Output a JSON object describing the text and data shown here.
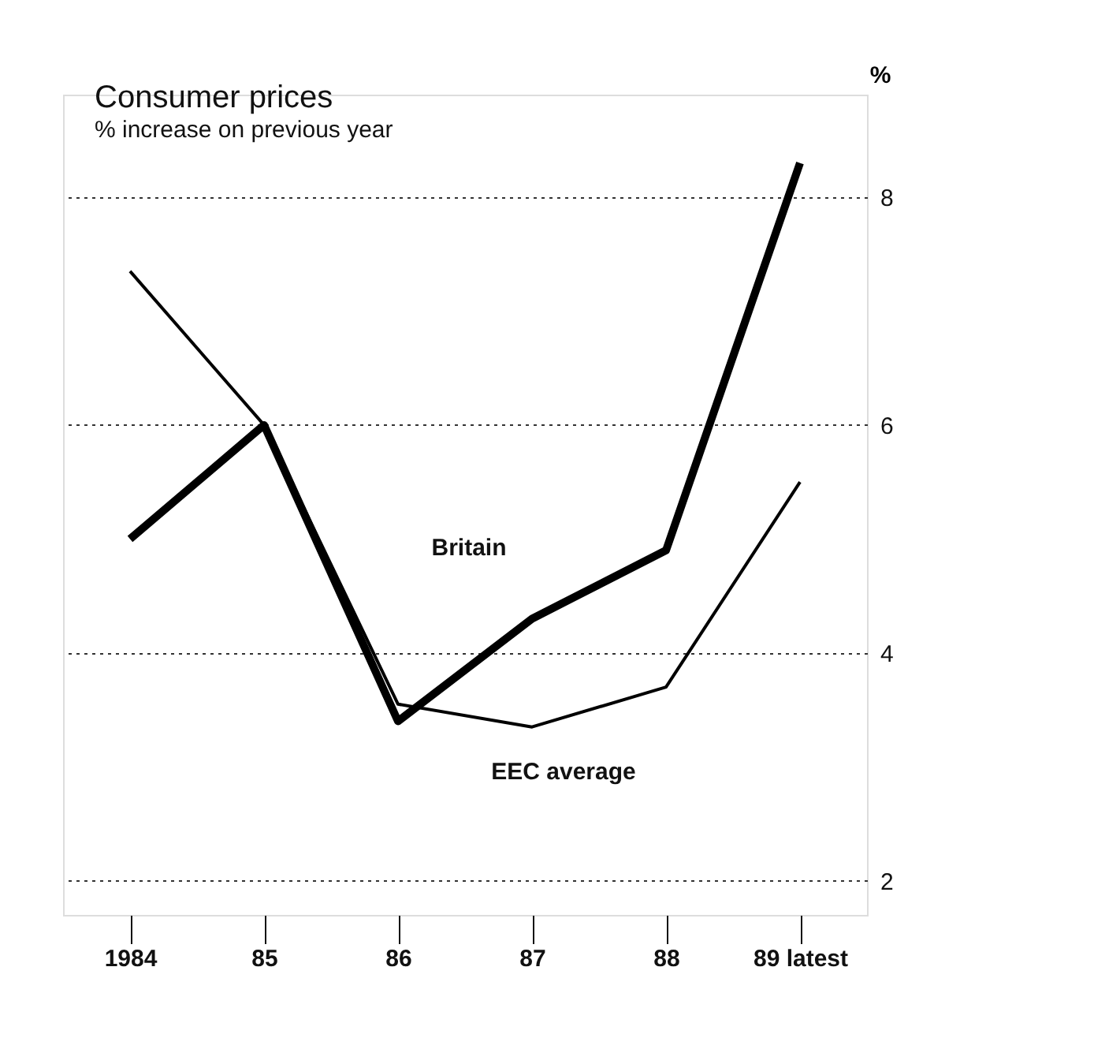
{
  "chart_data": {
    "type": "line",
    "title": "Consumer prices",
    "subtitle": "% increase on previous year",
    "ylabel": "%",
    "categories": [
      "1984",
      "85",
      "86",
      "87",
      "88",
      "89 latest"
    ],
    "series": [
      {
        "name": "Britain",
        "color": "#000000",
        "values": [
          5.0,
          6.0,
          3.4,
          4.3,
          4.9,
          8.3
        ]
      },
      {
        "name": "EEC average",
        "color": "#000000",
        "values": [
          7.35,
          6.0,
          3.55,
          3.35,
          3.7,
          5.5
        ]
      }
    ],
    "ylim": [
      1.7,
      8.9
    ],
    "yticks": [
      2,
      4,
      6,
      8
    ],
    "grid": "y",
    "line_style": "solid",
    "marker": "none"
  }
}
